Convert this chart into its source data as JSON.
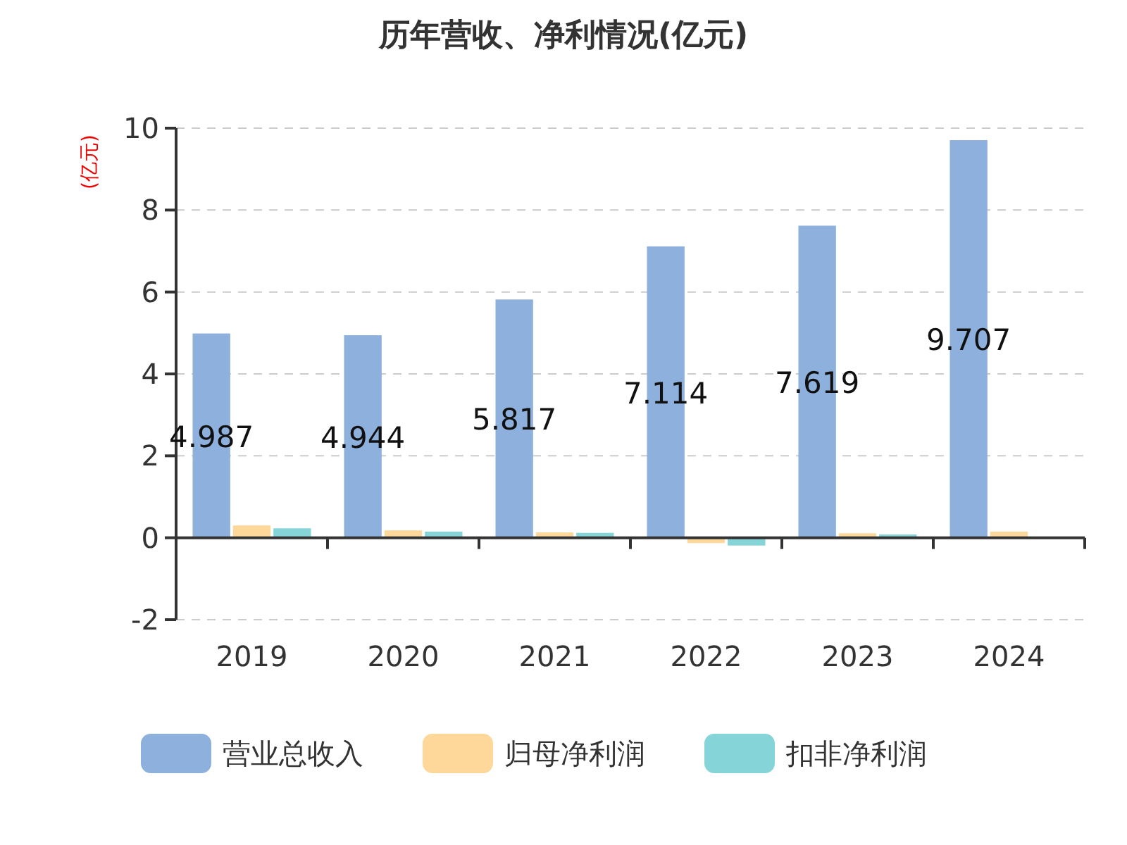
{
  "chart_data": {
    "type": "bar",
    "title": "历年营收、净利情况(亿元)",
    "ylabel": "(亿元)",
    "categories": [
      "2019",
      "2020",
      "2021",
      "2022",
      "2023",
      "2024"
    ],
    "series": [
      {
        "name": "营业总收入",
        "color": "#8eb0dc",
        "values": [
          4.987,
          4.944,
          5.817,
          7.114,
          7.619,
          9.707
        ],
        "value_labels": [
          "4.987",
          "4.944",
          "5.817",
          "7.114",
          "7.619",
          "9.707"
        ]
      },
      {
        "name": "归母净利润",
        "color": "#fdd89a",
        "values": [
          0.3,
          0.18,
          0.13,
          -0.13,
          0.11,
          0.15
        ]
      },
      {
        "name": "扣非净利润",
        "color": "#85d4d8",
        "values": [
          0.23,
          0.15,
          0.12,
          -0.19,
          0.08,
          null
        ]
      }
    ],
    "ylim": [
      -2,
      10
    ],
    "yticks": [
      -2,
      0,
      2,
      4,
      6,
      8,
      10
    ],
    "grid": "y",
    "legend": "bottom"
  }
}
